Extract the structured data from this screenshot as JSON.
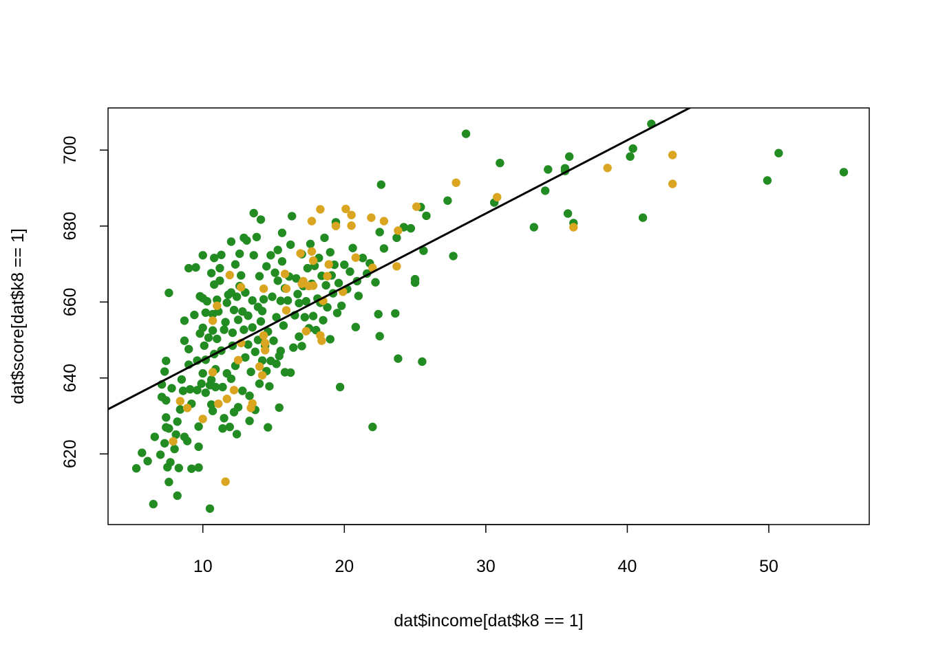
{
  "chart_data": {
    "type": "scatter",
    "title": "",
    "xlabel": "dat$income[dat$k8 == 1]",
    "ylabel": "dat$score[dat$k8 == 1]",
    "xlim": [
      3.3,
      57.1
    ],
    "ylim": [
      601.4,
      711.1
    ],
    "xticks": [
      10,
      20,
      30,
      40,
      50
    ],
    "yticks": [
      620,
      640,
      660,
      680,
      700
    ],
    "grid": false,
    "legend": "none",
    "colors": {
      "green": "#228B22",
      "gold": "#DAA520",
      "line": "#000000",
      "axis": "#000000"
    },
    "regression_line": {
      "color": "#000000",
      "intercept": 625.4,
      "slope": 1.93
    },
    "series": [
      {
        "color": "#228B22",
        "points": [
          [
            5.3,
            616.2
          ],
          [
            5.7,
            620.3
          ],
          [
            6.1,
            618.1
          ],
          [
            6.5,
            606.8
          ],
          [
            6.6,
            624.5
          ],
          [
            7.0,
            619.8
          ],
          [
            7.1,
            638.3
          ],
          [
            7.1,
            635.0
          ],
          [
            7.3,
            622.8
          ],
          [
            7.4,
            627.0
          ],
          [
            7.4,
            629.6
          ],
          [
            7.4,
            644.5
          ],
          [
            7.3,
            641.7
          ],
          [
            7.4,
            634.1
          ],
          [
            7.5,
            616.5
          ],
          [
            7.6,
            612.6
          ],
          [
            7.6,
            626.7
          ],
          [
            7.6,
            662.4
          ],
          [
            7.7,
            617.8
          ],
          [
            7.8,
            637.3
          ],
          [
            8.0,
            621.3
          ],
          [
            8.1,
            625.1
          ],
          [
            8.2,
            628.5
          ],
          [
            8.2,
            609.0
          ],
          [
            8.3,
            616.3
          ],
          [
            8.4,
            631.7
          ],
          [
            8.5,
            639.6
          ],
          [
            8.6,
            636.6
          ],
          [
            8.7,
            655.1
          ],
          [
            8.7,
            649.8
          ],
          [
            8.7,
            624.5
          ],
          [
            8.9,
            623.4
          ],
          [
            9.0,
            668.9
          ],
          [
            9.0,
            647.6
          ],
          [
            9.0,
            643.5
          ],
          [
            9.1,
            637.0
          ],
          [
            9.2,
            616.1
          ],
          [
            9.2,
            633.2
          ],
          [
            9.4,
            656.6
          ],
          [
            9.5,
            669.1
          ],
          [
            9.6,
            644.6
          ],
          [
            9.6,
            636.8
          ],
          [
            9.7,
            621.9
          ],
          [
            9.7,
            616.4
          ],
          [
            9.7,
            627.2
          ],
          [
            9.8,
            661.5
          ],
          [
            9.8,
            651.7
          ],
          [
            9.9,
            638.5
          ],
          [
            10.0,
            661.0
          ],
          [
            10.0,
            672.3
          ],
          [
            10.0,
            653.2
          ],
          [
            10.0,
            641.2
          ],
          [
            10.1,
            648.5
          ],
          [
            10.2,
            636.1
          ],
          [
            10.2,
            657.2
          ],
          [
            10.2,
            644.8
          ],
          [
            10.3,
            660.2
          ],
          [
            10.4,
            650.6
          ],
          [
            10.5,
            638.1
          ],
          [
            10.5,
            605.6
          ],
          [
            10.6,
            667.6
          ],
          [
            10.6,
            639.5
          ],
          [
            10.6,
            633.0
          ],
          [
            10.7,
            656.8
          ],
          [
            10.7,
            631.3
          ],
          [
            10.7,
            652.5
          ],
          [
            10.8,
            664.6
          ],
          [
            10.8,
            671.6
          ],
          [
            10.8,
            646.3
          ],
          [
            10.9,
            637.6
          ],
          [
            10.9,
            642.3
          ],
          [
            11.0,
            660.6
          ],
          [
            11.0,
            650.3
          ],
          [
            11.1,
            657.5
          ],
          [
            11.2,
            668.9
          ],
          [
            11.2,
            665.6
          ],
          [
            11.3,
            672.4
          ],
          [
            11.3,
            647.2
          ],
          [
            11.4,
            637.6
          ],
          [
            11.4,
            626.7
          ],
          [
            11.5,
            652.7
          ],
          [
            11.5,
            629.4
          ],
          [
            11.6,
            654.7
          ],
          [
            11.7,
            641.2
          ],
          [
            11.7,
            659.8
          ],
          [
            11.8,
            661.9
          ],
          [
            11.9,
            627.1
          ],
          [
            12.0,
            675.9
          ],
          [
            12.0,
            639.8
          ],
          [
            12.0,
            662.5
          ],
          [
            12.1,
            651.9
          ],
          [
            12.1,
            648.5
          ],
          [
            12.2,
            657.9
          ],
          [
            12.2,
            631.0
          ],
          [
            12.3,
            669.9
          ],
          [
            12.3,
            643.2
          ],
          [
            12.4,
            661.4
          ],
          [
            12.4,
            625.2
          ],
          [
            12.5,
            655.3
          ],
          [
            12.5,
            632.3
          ],
          [
            12.6,
            664.2
          ],
          [
            12.6,
            672.7
          ],
          [
            12.7,
            667.0
          ],
          [
            12.8,
            657.5
          ],
          [
            12.8,
            636.6
          ],
          [
            12.9,
            676.9
          ],
          [
            12.9,
            652.7
          ],
          [
            13.0,
            645.4
          ],
          [
            13.0,
            662.5
          ],
          [
            13.1,
            676.2
          ],
          [
            13.2,
            656.4
          ],
          [
            13.2,
            648.8
          ],
          [
            13.3,
            628.7
          ],
          [
            13.3,
            635.3
          ],
          [
            13.4,
            641.6
          ],
          [
            13.5,
            660.4
          ],
          [
            13.5,
            653.3
          ],
          [
            13.6,
            683.4
          ],
          [
            13.6,
            672.3
          ],
          [
            13.7,
            646.9
          ],
          [
            13.7,
            631.6
          ],
          [
            13.8,
            677.1
          ],
          [
            13.9,
            658.7
          ],
          [
            13.9,
            650.0
          ],
          [
            14.0,
            638.5
          ],
          [
            14.0,
            666.8
          ],
          [
            14.1,
            681.7
          ],
          [
            14.1,
            654.9
          ],
          [
            14.2,
            644.6
          ],
          [
            14.2,
            657.6
          ],
          [
            14.3,
            660.7
          ],
          [
            14.4,
            648.5
          ],
          [
            14.5,
            669.4
          ],
          [
            14.5,
            641.8
          ],
          [
            14.6,
            627.0
          ],
          [
            14.6,
            652.2
          ],
          [
            14.7,
            637.8
          ],
          [
            14.8,
            672.3
          ],
          [
            14.8,
            644.5
          ],
          [
            14.9,
            661.4
          ],
          [
            15.0,
            649.8
          ],
          [
            15.1,
            667.7
          ],
          [
            15.2,
            656.0
          ],
          [
            15.2,
            643.7
          ],
          [
            15.3,
            665.6
          ],
          [
            15.3,
            673.7
          ],
          [
            15.4,
            645.8
          ],
          [
            15.4,
            632.2
          ],
          [
            15.5,
            660.3
          ],
          [
            15.5,
            647.1
          ],
          [
            15.6,
            678.2
          ],
          [
            15.6,
            670.7
          ],
          [
            15.7,
            653.8
          ],
          [
            15.8,
            663.6
          ],
          [
            15.8,
            641.5
          ],
          [
            16.0,
            660.4
          ],
          [
            16.1,
            666.7
          ],
          [
            16.2,
            675.1
          ],
          [
            16.2,
            641.4
          ],
          [
            16.3,
            682.6
          ],
          [
            16.4,
            648.0
          ],
          [
            16.5,
            656.5
          ],
          [
            16.6,
            666.2
          ],
          [
            16.7,
            662.1
          ],
          [
            16.8,
            659.7
          ],
          [
            16.8,
            650.9
          ],
          [
            17.0,
            672.6
          ],
          [
            17.0,
            648.4
          ],
          [
            17.1,
            664.2
          ],
          [
            17.2,
            656.0
          ],
          [
            17.3,
            660.2
          ],
          [
            17.4,
            668.9
          ],
          [
            17.5,
            653.1
          ],
          [
            17.6,
            675.3
          ],
          [
            17.7,
            664.8
          ],
          [
            17.8,
            656.3
          ],
          [
            17.9,
            669.5
          ],
          [
            18.0,
            652.6
          ],
          [
            18.1,
            660.9
          ],
          [
            18.2,
            671.6
          ],
          [
            18.3,
            659.8
          ],
          [
            18.4,
            666.9
          ],
          [
            18.5,
            655.2
          ],
          [
            18.6,
            676.9
          ],
          [
            18.7,
            664.4
          ],
          [
            18.8,
            658.6
          ],
          [
            19.0,
            673.1
          ],
          [
            19.0,
            650.2
          ],
          [
            19.1,
            667.0
          ],
          [
            19.2,
            662.3
          ],
          [
            19.3,
            669.8
          ],
          [
            19.4,
            681.0
          ],
          [
            19.5,
            657.1
          ],
          [
            19.6,
            665.0
          ],
          [
            19.7,
            637.6
          ],
          [
            19.8,
            659.0
          ],
          [
            20.0,
            669.8
          ],
          [
            20.2,
            663.4
          ],
          [
            20.4,
            668.0
          ],
          [
            20.6,
            674.2
          ],
          [
            20.8,
            653.4
          ],
          [
            20.9,
            665.5
          ],
          [
            21.0,
            661.6
          ],
          [
            21.3,
            671.6
          ],
          [
            21.6,
            667.5
          ],
          [
            21.8,
            670.2
          ],
          [
            22.0,
            627.1
          ],
          [
            22.2,
            665.2
          ],
          [
            22.4,
            656.8
          ],
          [
            22.5,
            651.0
          ],
          [
            22.5,
            678.4
          ],
          [
            22.6,
            690.9
          ],
          [
            22.8,
            674.1
          ],
          [
            23.6,
            657.0
          ],
          [
            23.7,
            676.9
          ],
          [
            23.8,
            645.1
          ],
          [
            24.2,
            679.7
          ],
          [
            24.7,
            679.4
          ],
          [
            25.0,
            666.0
          ],
          [
            25.0,
            665.1
          ],
          [
            25.4,
            685.0
          ],
          [
            25.5,
            644.3
          ],
          [
            25.6,
            673.5
          ],
          [
            25.8,
            682.7
          ],
          [
            27.3,
            686.7
          ],
          [
            27.7,
            672.1
          ],
          [
            28.6,
            704.3
          ],
          [
            30.6,
            686.2
          ],
          [
            31.0,
            696.6
          ],
          [
            33.4,
            679.7
          ],
          [
            34.2,
            689.3
          ],
          [
            34.4,
            694.9
          ],
          [
            35.6,
            695.2
          ],
          [
            35.6,
            694.5
          ],
          [
            35.8,
            683.3
          ],
          [
            35.9,
            698.3
          ],
          [
            36.2,
            680.8
          ],
          [
            40.2,
            698.3
          ],
          [
            40.4,
            700.4
          ],
          [
            41.1,
            682.2
          ],
          [
            41.7,
            706.9
          ],
          [
            49.9,
            692.0
          ],
          [
            50.7,
            699.2
          ],
          [
            55.3,
            694.2
          ]
        ]
      },
      {
        "color": "#DAA520",
        "points": [
          [
            7.9,
            623.3
          ],
          [
            8.4,
            633.9
          ],
          [
            8.9,
            632.1
          ],
          [
            10.0,
            629.2
          ],
          [
            10.7,
            641.5
          ],
          [
            10.7,
            655.1
          ],
          [
            11.0,
            659.0
          ],
          [
            11.1,
            633.2
          ],
          [
            11.6,
            612.7
          ],
          [
            11.7,
            634.5
          ],
          [
            11.9,
            667.1
          ],
          [
            12.2,
            636.8
          ],
          [
            12.5,
            644.7
          ],
          [
            12.7,
            663.9
          ],
          [
            12.7,
            649.2
          ],
          [
            13.4,
            632.1
          ],
          [
            13.5,
            633.3
          ],
          [
            14.0,
            643.0
          ],
          [
            14.2,
            640.7
          ],
          [
            14.3,
            663.5
          ],
          [
            14.3,
            651.2
          ],
          [
            14.4,
            649.2
          ],
          [
            14.4,
            647.3
          ],
          [
            15.8,
            667.4
          ],
          [
            15.9,
            657.8
          ],
          [
            15.9,
            663.5
          ],
          [
            16.9,
            672.8
          ],
          [
            17.0,
            664.8
          ],
          [
            17.1,
            665.5
          ],
          [
            17.3,
            652.3
          ],
          [
            17.5,
            664.2
          ],
          [
            17.7,
            681.3
          ],
          [
            17.7,
            673.3
          ],
          [
            17.8,
            664.3
          ],
          [
            17.8,
            670.9
          ],
          [
            18.3,
            684.4
          ],
          [
            18.3,
            651.2
          ],
          [
            18.4,
            649.8
          ],
          [
            18.5,
            660.3
          ],
          [
            18.8,
            666.8
          ],
          [
            18.9,
            669.9
          ],
          [
            19.4,
            680.0
          ],
          [
            19.9,
            662.7
          ],
          [
            20.1,
            684.5
          ],
          [
            20.5,
            682.9
          ],
          [
            20.5,
            680.1
          ],
          [
            20.8,
            671.7
          ],
          [
            21.9,
            682.2
          ],
          [
            22.0,
            669.0
          ],
          [
            22.8,
            681.3
          ],
          [
            23.7,
            669.4
          ],
          [
            23.8,
            678.8
          ],
          [
            25.1,
            685.1
          ],
          [
            27.9,
            691.4
          ],
          [
            30.8,
            687.6
          ],
          [
            36.2,
            679.7
          ],
          [
            38.6,
            695.3
          ],
          [
            43.2,
            698.7
          ],
          [
            43.2,
            691.1
          ]
        ]
      }
    ]
  }
}
